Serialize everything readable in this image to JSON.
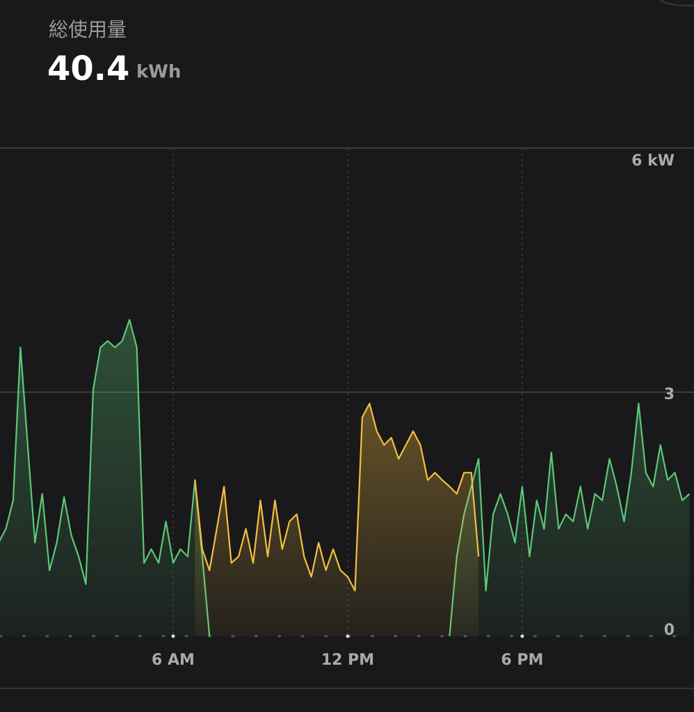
{
  "header": {
    "title": "総使用量",
    "total": 40.4,
    "total_unit": "kWh"
  },
  "chart_data": {
    "type": "area-line",
    "x": [
      0,
      0.25,
      0.5,
      0.75,
      1,
      1.25,
      1.5,
      1.75,
      2,
      2.25,
      2.5,
      2.75,
      3,
      3.25,
      3.5,
      3.75,
      4,
      4.25,
      4.5,
      4.75,
      5,
      5.25,
      5.5,
      5.75,
      6,
      6.25,
      6.5,
      6.75,
      7,
      7.25,
      7.5,
      7.75,
      8,
      8.25,
      8.5,
      8.75,
      9,
      9.25,
      9.5,
      9.75,
      10,
      10.25,
      10.5,
      10.75,
      11,
      11.25,
      11.5,
      11.75,
      12,
      12.25,
      12.5,
      12.75,
      13,
      13.25,
      13.5,
      13.75,
      14,
      14.25,
      14.5,
      14.75,
      15,
      15.25,
      15.5,
      15.75,
      16,
      16.25,
      16.5,
      16.75,
      17,
      17.25,
      17.5,
      17.75,
      18,
      18.25,
      18.5,
      18.75,
      19,
      19.25,
      19.5,
      19.75,
      20,
      20.25,
      20.5,
      20.75,
      21,
      21.25,
      21.5,
      21.75,
      22,
      22.25,
      22.5,
      22.75,
      23,
      23.25,
      23.5,
      23.75
    ],
    "series": [
      {
        "color": "#5cc878",
        "values": [
          1.15,
          1.32,
          1.67,
          3.55,
          2.35,
          1.15,
          1.75,
          0.81,
          1.15,
          1.71,
          1.24,
          0.98,
          0.64,
          3.03,
          3.55,
          3.63,
          3.55,
          3.63,
          3.89,
          3.55,
          0.9,
          1.07,
          0.9,
          1.41,
          0.9,
          1.07,
          0.98,
          1.92,
          0.98,
          0,
          null,
          null,
          null,
          null,
          null,
          null,
          null,
          null,
          null,
          null,
          null,
          null,
          null,
          null,
          null,
          null,
          null,
          null,
          null,
          null,
          null,
          null,
          null,
          null,
          null,
          null,
          null,
          null,
          null,
          null,
          null,
          null,
          0,
          0.98,
          1.5,
          1.84,
          2.18,
          0.56,
          1.5,
          1.75,
          1.5,
          1.15,
          1.84,
          0.98,
          1.67,
          1.32,
          2.26,
          1.32,
          1.5,
          1.41,
          1.84,
          1.32,
          1.75,
          1.67,
          2.18,
          1.84,
          1.41,
          2.01,
          2.86,
          2.01,
          1.84,
          2.35,
          1.92,
          2.01,
          1.67,
          1.75
        ]
      },
      {
        "color": "#f5c040",
        "values": [
          null,
          null,
          null,
          null,
          null,
          null,
          null,
          null,
          null,
          null,
          null,
          null,
          null,
          null,
          null,
          null,
          null,
          null,
          null,
          null,
          null,
          null,
          null,
          null,
          null,
          null,
          null,
          1.92,
          1.07,
          0.81,
          1.32,
          1.84,
          0.9,
          0.98,
          1.32,
          0.9,
          1.67,
          0.98,
          1.67,
          1.07,
          1.41,
          1.5,
          0.98,
          0.73,
          1.15,
          0.81,
          1.07,
          0.81,
          0.73,
          0.56,
          2.69,
          2.86,
          2.52,
          2.35,
          2.44,
          2.18,
          2.35,
          2.52,
          2.35,
          1.92,
          2.01,
          1.92,
          1.84,
          1.75,
          2.01,
          2.01,
          0.98,
          null,
          null,
          null,
          null,
          null,
          null,
          null,
          null,
          null,
          null,
          null,
          null,
          null,
          null,
          null,
          null,
          null,
          null,
          null,
          null,
          null,
          null,
          null,
          null,
          null,
          null,
          null,
          null,
          null
        ]
      }
    ],
    "xlim": [
      0,
      24
    ],
    "xticks": [
      {
        "value": 6,
        "label": "6 AM"
      },
      {
        "value": 12,
        "label": "12 PM"
      },
      {
        "value": 18,
        "label": "6 PM"
      }
    ],
    "ylim": [
      0,
      6
    ],
    "yticks": [
      0,
      3,
      {
        "value": 6,
        "label": "6 kW"
      }
    ],
    "grid": true
  }
}
